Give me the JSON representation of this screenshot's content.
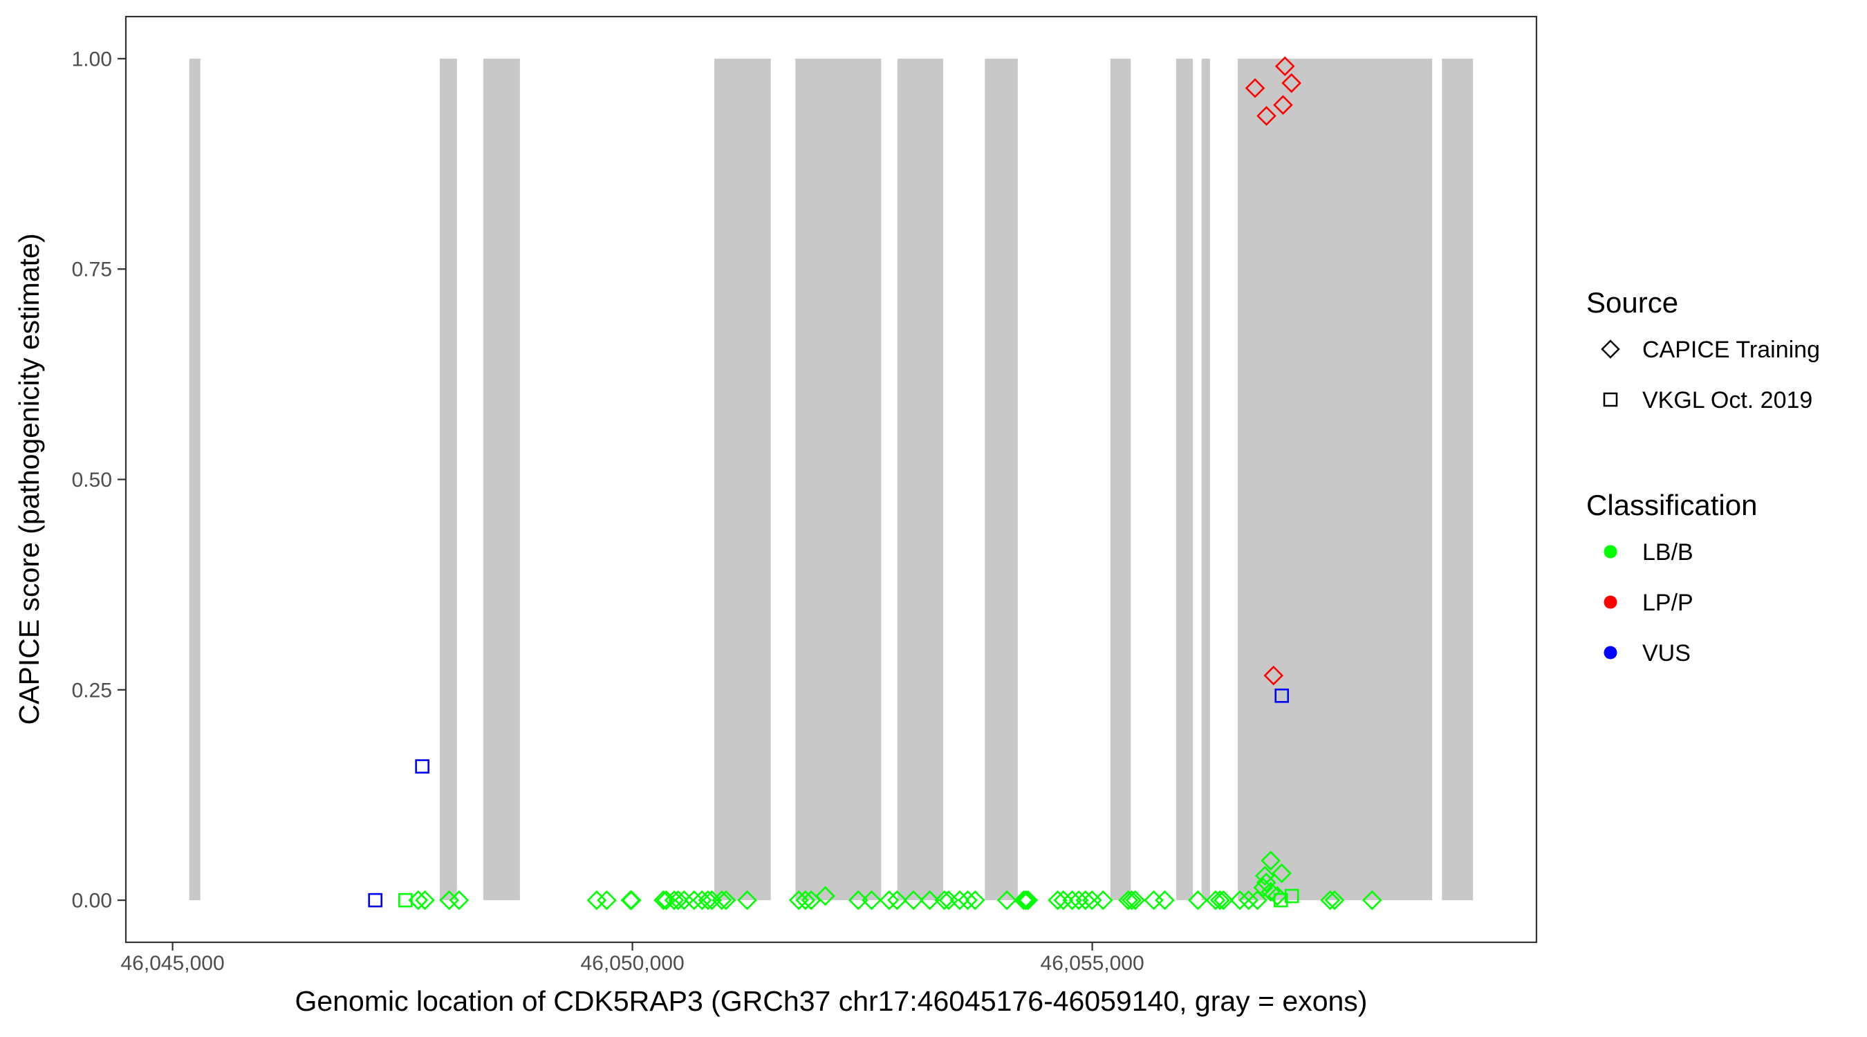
{
  "chart_data": {
    "type": "scatter",
    "xlabel": "Genomic location of CDK5RAP3 (GRCh37 chr17:46045176-46059140, gray = exons)",
    "ylabel": "CAPICE score (pathogenicity estimate)",
    "xlim": [
      46044492,
      46059830
    ],
    "ylim": [
      -0.05,
      1.05
    ],
    "x_ticks": [
      46045000,
      46050000,
      46055000
    ],
    "x_tick_labels": [
      "46,045,000",
      "46,050,000",
      "46,055,000"
    ],
    "y_ticks": [
      0,
      0.25,
      0.5,
      0.75,
      1.0
    ],
    "y_tick_labels": [
      "0.00",
      "0.25",
      "0.50",
      "0.75",
      "1.00"
    ],
    "grid": false,
    "exon_color": "#C8C8C8",
    "exons": [
      [
        46045182,
        46045302
      ],
      [
        46047905,
        46048092
      ],
      [
        46048379,
        46048777
      ],
      [
        46050890,
        46051505
      ],
      [
        46051772,
        46052705
      ],
      [
        46052881,
        46053379
      ],
      [
        46053832,
        46054190
      ],
      [
        46055197,
        46055419
      ],
      [
        46055912,
        46056093
      ],
      [
        46056189,
        46056280
      ],
      [
        46056582,
        46058696
      ],
      [
        46058802,
        46059140
      ]
    ],
    "legend": {
      "placement": "right",
      "source": {
        "title": "Source",
        "items": [
          {
            "label": "CAPICE Training",
            "shape": "diamond"
          },
          {
            "label": "VKGL Oct. 2019",
            "shape": "square"
          }
        ]
      },
      "classification": {
        "title": "Classification",
        "items": [
          {
            "label": "LB/B",
            "color": "#00FF00"
          },
          {
            "label": "LP/P",
            "color": "#FF0000"
          },
          {
            "label": "VUS",
            "color": "#0000FF"
          }
        ]
      }
    },
    "series": [
      {
        "source": "CAPICE Training",
        "classification": "LB/B",
        "points": [
          [
            46047671,
            0
          ],
          [
            46047744,
            0
          ],
          [
            46048008,
            0
          ],
          [
            46048115,
            0
          ],
          [
            46049612,
            0
          ],
          [
            46049721,
            0
          ],
          [
            46049980,
            0
          ],
          [
            46049990,
            0
          ],
          [
            46050338,
            0
          ],
          [
            46050368,
            0
          ],
          [
            46050454,
            0
          ],
          [
            46050498,
            0
          ],
          [
            46050562,
            0
          ],
          [
            46050671,
            0
          ],
          [
            46050757,
            0
          ],
          [
            46050822,
            0
          ],
          [
            46050865,
            0
          ],
          [
            46050972,
            0
          ],
          [
            46051018,
            0
          ],
          [
            46051248,
            0
          ],
          [
            46051809,
            0
          ],
          [
            46051881,
            0
          ],
          [
            46051944,
            0
          ],
          [
            46052097,
            0.005
          ],
          [
            46052456,
            0
          ],
          [
            46052601,
            0
          ],
          [
            46052792,
            0
          ],
          [
            46052878,
            0
          ],
          [
            46053056,
            0
          ],
          [
            46053233,
            0
          ],
          [
            46053392,
            0
          ],
          [
            46053439,
            0
          ],
          [
            46053559,
            0
          ],
          [
            46053646,
            0
          ],
          [
            46053727,
            0
          ],
          [
            46054072,
            0
          ],
          [
            46054255,
            0
          ],
          [
            46054279,
            0
          ],
          [
            46054303,
            0
          ],
          [
            46054624,
            0
          ],
          [
            46054686,
            0
          ],
          [
            46054782,
            0
          ],
          [
            46054854,
            0
          ],
          [
            46054926,
            0
          ],
          [
            46054998,
            0
          ],
          [
            46055118,
            0
          ],
          [
            46055391,
            0
          ],
          [
            46055429,
            0
          ],
          [
            46055468,
            0
          ],
          [
            46055669,
            0
          ],
          [
            46055789,
            0
          ],
          [
            46056149,
            0
          ],
          [
            46056341,
            0
          ],
          [
            46056389,
            0
          ],
          [
            46056427,
            0
          ],
          [
            46056605,
            0
          ],
          [
            46056700,
            0
          ],
          [
            46056796,
            0
          ],
          [
            46056940,
            0.047
          ],
          [
            46057060,
            0.032
          ],
          [
            46056877,
            0.029
          ],
          [
            46056892,
            0.021
          ],
          [
            46056859,
            0.015
          ],
          [
            46056940,
            0.01
          ],
          [
            46057012,
            0.005
          ],
          [
            46057587,
            0
          ],
          [
            46057635,
            0
          ],
          [
            46058043,
            0
          ]
        ]
      },
      {
        "source": "VKGL Oct. 2019",
        "classification": "LB/B",
        "points": [
          [
            46047532,
            0
          ],
          [
            46057050,
            0
          ],
          [
            46057170,
            0.005
          ]
        ]
      },
      {
        "source": "CAPICE Training",
        "classification": "LP/P",
        "points": [
          [
            46057095,
            0.991
          ],
          [
            46057166,
            0.971
          ],
          [
            46056770,
            0.965
          ],
          [
            46057074,
            0.945
          ],
          [
            46056894,
            0.932
          ],
          [
            46056971,
            0.267
          ]
        ]
      },
      {
        "source": "VKGL Oct. 2019",
        "classification": "VUS",
        "points": [
          [
            46047204,
            0
          ],
          [
            46047715,
            0.159
          ],
          [
            46057061,
            0.243
          ]
        ]
      }
    ]
  }
}
